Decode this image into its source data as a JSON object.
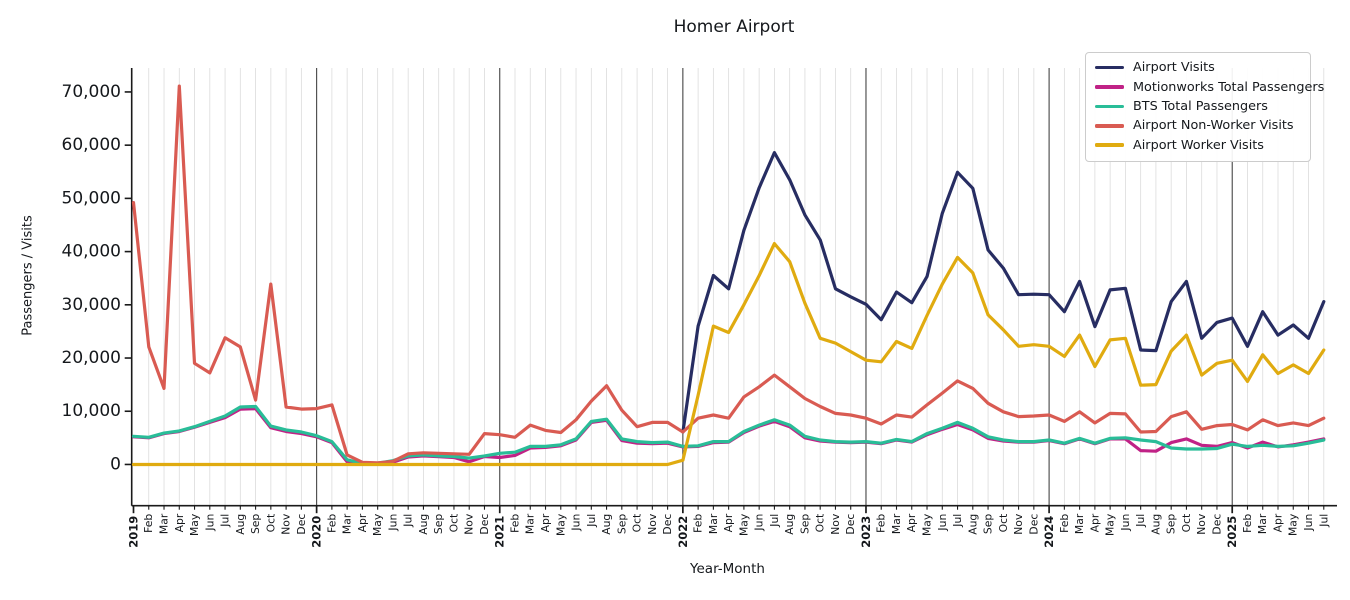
{
  "chart_data": {
    "type": "line",
    "title": "Homer Airport",
    "xlabel": "Year-Month",
    "ylabel": "Passengers / Visits",
    "ylim": [
      -7750,
      74500
    ],
    "yticks": [
      0,
      10000,
      20000,
      30000,
      40000,
      50000,
      60000,
      70000
    ],
    "ytick_labels": [
      "0",
      "10,000",
      "20,000",
      "30,000",
      "40,000",
      "50,000",
      "60,000",
      "70,000"
    ],
    "grid": "light vertical gridline per month, dark vertical line at each January",
    "legend_position": "upper right",
    "x_labels": [
      "2019",
      "Feb",
      "Mar",
      "Apr",
      "May",
      "Jun",
      "Jul",
      "Aug",
      "Sep",
      "Oct",
      "Nov",
      "Dec",
      "2020",
      "Feb",
      "Mar",
      "Apr",
      "May",
      "Jun",
      "Jul",
      "Aug",
      "Sep",
      "Oct",
      "Nov",
      "Dec",
      "2021",
      "Feb",
      "Mar",
      "Apr",
      "May",
      "Jun",
      "Jul",
      "Aug",
      "Sep",
      "Oct",
      "Nov",
      "Dec",
      "2022",
      "Feb",
      "Mar",
      "Apr",
      "May",
      "Jun",
      "Jul",
      "Aug",
      "Sep",
      "Oct",
      "Nov",
      "Dec",
      "2023",
      "Feb",
      "Mar",
      "Apr",
      "May",
      "Jun",
      "Jul",
      "Aug",
      "Sep",
      "Oct",
      "Nov",
      "Dec",
      "2024",
      "Feb",
      "Mar",
      "Apr",
      "May",
      "Jun",
      "Jul",
      "Aug",
      "Sep",
      "Oct",
      "Nov",
      "Dec",
      "2025",
      "Feb",
      "Mar",
      "Apr",
      "May",
      "Jun",
      "Jul"
    ],
    "series": [
      {
        "name": "Airport Visits",
        "color": "#272d62",
        "values": [
          null,
          null,
          null,
          null,
          null,
          null,
          null,
          null,
          null,
          null,
          null,
          null,
          null,
          null,
          null,
          null,
          null,
          null,
          null,
          null,
          null,
          null,
          null,
          null,
          null,
          null,
          null,
          null,
          null,
          null,
          null,
          null,
          null,
          null,
          null,
          null,
          6100,
          26000,
          35500,
          33000,
          44000,
          52000,
          58600,
          53500,
          46900,
          42200,
          33000,
          31500,
          30100,
          27200,
          32400,
          30400,
          35300,
          47200,
          54900,
          51900,
          40300,
          36900,
          31900,
          32000,
          31900,
          28700,
          34400,
          25900,
          32800,
          33100,
          21500,
          21400,
          30600,
          34400,
          23700,
          26700,
          27500,
          22200,
          28700,
          24300,
          26200,
          23700,
          30600
        ]
      },
      {
        "name": "Motionworks Total Passengers",
        "color": "#c02286",
        "values": [
          5200,
          5000,
          5800,
          6200,
          7000,
          7900,
          8800,
          10400,
          10500,
          6900,
          6200,
          5800,
          5200,
          4100,
          500,
          50,
          100,
          400,
          1400,
          1600,
          1450,
          1300,
          500,
          1500,
          1300,
          1700,
          3100,
          3200,
          3500,
          4600,
          7900,
          8300,
          4500,
          4000,
          3900,
          4000,
          3300,
          3400,
          4100,
          4200,
          6000,
          7200,
          8100,
          7100,
          5000,
          4400,
          4200,
          4100,
          4200,
          3900,
          4600,
          4200,
          5600,
          6600,
          7500,
          6500,
          4900,
          4400,
          4200,
          4200,
          4500,
          3900,
          4800,
          3900,
          4800,
          4800,
          2600,
          2500,
          4100,
          4800,
          3600,
          3400,
          4100,
          3100,
          4200,
          3300,
          3700,
          4200,
          4800
        ]
      },
      {
        "name": "BTS Total Passengers",
        "color": "#29bd98",
        "values": [
          5300,
          5100,
          5900,
          6300,
          7100,
          8100,
          9100,
          10800,
          10900,
          7200,
          6500,
          6100,
          5400,
          4300,
          900,
          150,
          250,
          700,
          1600,
          1800,
          1600,
          1500,
          1200,
          1600,
          2100,
          2300,
          3400,
          3400,
          3700,
          4800,
          8100,
          8500,
          4800,
          4300,
          4100,
          4200,
          3400,
          3500,
          4300,
          4300,
          6200,
          7400,
          8400,
          7400,
          5300,
          4600,
          4300,
          4200,
          4300,
          4000,
          4700,
          4300,
          5800,
          6800,
          7900,
          6800,
          5200,
          4600,
          4300,
          4300,
          4600,
          4000,
          4900,
          4000,
          4900,
          5000,
          4600,
          4300,
          3100,
          2900,
          2900,
          3000,
          3800,
          3400,
          3600,
          3400,
          3500,
          4000,
          4600
        ]
      },
      {
        "name": "Airport Non-Worker Visits",
        "color": "#d95b52",
        "values": [
          49200,
          22100,
          14300,
          71100,
          19000,
          17200,
          23800,
          22100,
          12100,
          33900,
          10800,
          10400,
          10500,
          11200,
          1800,
          400,
          300,
          600,
          2000,
          2200,
          2100,
          2000,
          1900,
          5800,
          5600,
          5100,
          7400,
          6400,
          6000,
          8400,
          11900,
          14800,
          10200,
          7100,
          7900,
          7900,
          6100,
          8700,
          9300,
          8700,
          12700,
          14600,
          16800,
          14600,
          12400,
          10900,
          9600,
          9300,
          8700,
          7600,
          9300,
          8900,
          11200,
          13400,
          15700,
          14300,
          11500,
          9900,
          9000,
          9100,
          9300,
          8100,
          9900,
          7800,
          9600,
          9500,
          6100,
          6200,
          9000,
          9900,
          6600,
          7300,
          7500,
          6500,
          8400,
          7300,
          7800,
          7300,
          8700
        ]
      },
      {
        "name": "Airport Worker Visits",
        "color": "#e0ab10",
        "values": [
          0,
          0,
          0,
          0,
          0,
          0,
          0,
          0,
          0,
          0,
          0,
          0,
          0,
          0,
          0,
          0,
          0,
          0,
          0,
          0,
          0,
          0,
          0,
          0,
          0,
          0,
          0,
          0,
          0,
          0,
          0,
          0,
          0,
          0,
          0,
          0,
          800,
          13000,
          26000,
          24800,
          30000,
          35500,
          41500,
          38100,
          30300,
          23700,
          22800,
          21200,
          19600,
          19300,
          23100,
          21800,
          28000,
          33900,
          38900,
          36000,
          28100,
          25300,
          22200,
          22500,
          22200,
          20300,
          24300,
          18400,
          23400,
          23700,
          14900,
          15000,
          21300,
          24300,
          16800,
          19000,
          19600,
          15600,
          20600,
          17100,
          18700,
          17100,
          21500
        ]
      }
    ]
  }
}
